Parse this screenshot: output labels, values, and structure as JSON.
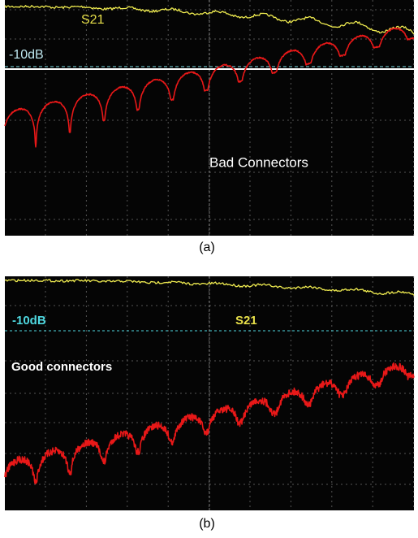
{
  "panels": [
    {
      "trace_label": "S21",
      "reference_label": "-10dB",
      "annotation": "Bad Connectors",
      "caption": "(a)"
    },
    {
      "trace_label": "S21",
      "reference_label": "-10dB",
      "annotation": "Good connectors",
      "caption": "(b)"
    }
  ]
}
